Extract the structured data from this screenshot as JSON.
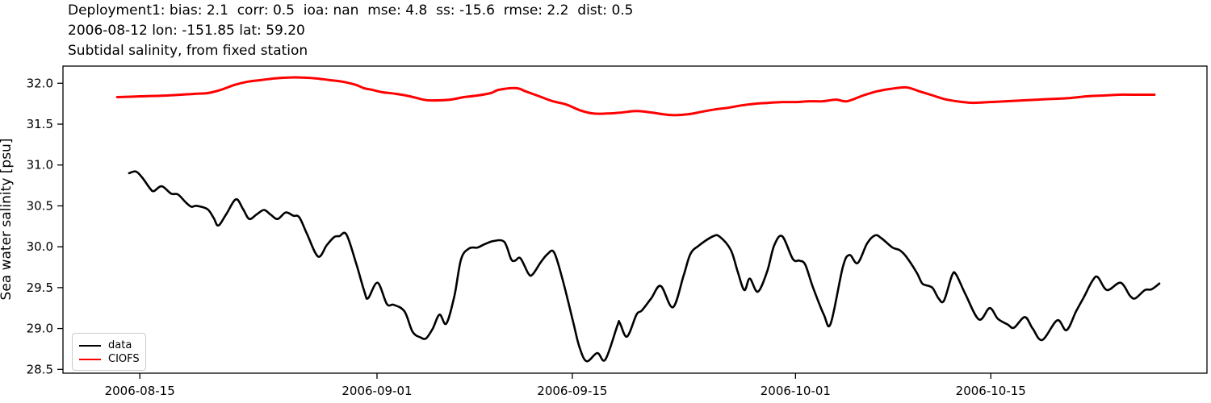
{
  "chart_data": {
    "type": "line",
    "title_lines": [
      "Deployment1: bias: 2.1  corr: 0.5  ioa: nan  mse: 4.8  ss: -15.6  rmse: 2.2  dist: 0.5",
      "2006-08-12 lon: -151.85 lat: 59.20",
      "Subtidal salinity, from fixed station"
    ],
    "xlabel": "",
    "ylabel": "Sea water salinity [psu]",
    "grid": false,
    "background": "#ffffff",
    "axis_color": "#000000",
    "ylim": [
      28.45,
      32.21
    ],
    "y_ticks": [
      {
        "value": 28.5,
        "label": "28.5"
      },
      {
        "value": 29.0,
        "label": "29.0"
      },
      {
        "value": 29.5,
        "label": "29.5"
      },
      {
        "value": 30.0,
        "label": "30.0"
      },
      {
        "value": 30.5,
        "label": "30.5"
      },
      {
        "value": 31.0,
        "label": "31.0"
      },
      {
        "value": 31.5,
        "label": "31.5"
      },
      {
        "value": 32.0,
        "label": "32.0"
      }
    ],
    "x_axis_note": "x values are days since 2006-08-15",
    "xlim_days": [
      -5.5,
      76.5
    ],
    "x_ticks": [
      {
        "day": 0,
        "label": "2006-08-15"
      },
      {
        "day": 17,
        "label": "2006-09-01"
      },
      {
        "day": 31,
        "label": "2006-09-15"
      },
      {
        "day": 47,
        "label": "2006-10-01"
      },
      {
        "day": 61,
        "label": "2006-10-15"
      }
    ],
    "legend": {
      "position": "lower left",
      "entries": [
        {
          "label": "data",
          "color": "#000000"
        },
        {
          "label": "CIOFS",
          "color": "#ff0000"
        }
      ]
    },
    "series": [
      {
        "name": "data",
        "color": "#000000",
        "line_width": 2.6,
        "points": [
          [
            -0.77,
            30.9
          ],
          [
            -0.27,
            30.92
          ],
          [
            0.2,
            30.84
          ],
          [
            0.7,
            30.72
          ],
          [
            0.99,
            30.68
          ],
          [
            1.57,
            30.74
          ],
          [
            2.24,
            30.65
          ],
          [
            2.73,
            30.64
          ],
          [
            3.31,
            30.54
          ],
          [
            3.69,
            30.49
          ],
          [
            4.08,
            30.5
          ],
          [
            4.85,
            30.46
          ],
          [
            5.3,
            30.35
          ],
          [
            5.63,
            30.26
          ],
          [
            6.2,
            30.4
          ],
          [
            6.89,
            30.58
          ],
          [
            7.4,
            30.46
          ],
          [
            7.85,
            30.34
          ],
          [
            8.4,
            30.4
          ],
          [
            8.91,
            30.45
          ],
          [
            9.4,
            30.39
          ],
          [
            9.88,
            30.34
          ],
          [
            10.46,
            30.42
          ],
          [
            11.0,
            30.38
          ],
          [
            11.43,
            30.36
          ],
          [
            12.0,
            30.15
          ],
          [
            12.78,
            29.88
          ],
          [
            13.4,
            30.02
          ],
          [
            13.94,
            30.12
          ],
          [
            14.3,
            30.13
          ],
          [
            14.81,
            30.15
          ],
          [
            15.5,
            29.8
          ],
          [
            16.1,
            29.45
          ],
          [
            16.36,
            29.37
          ],
          [
            17.04,
            29.56
          ],
          [
            17.71,
            29.3
          ],
          [
            18.2,
            29.29
          ],
          [
            18.97,
            29.21
          ],
          [
            19.55,
            28.96
          ],
          [
            20.13,
            28.89
          ],
          [
            20.52,
            28.88
          ],
          [
            21.0,
            29.0
          ],
          [
            21.48,
            29.17
          ],
          [
            21.97,
            29.06
          ],
          [
            22.55,
            29.4
          ],
          [
            23.03,
            29.85
          ],
          [
            23.61,
            29.98
          ],
          [
            24.19,
            29.99
          ],
          [
            24.7,
            30.03
          ],
          [
            25.35,
            30.07
          ],
          [
            26.12,
            30.06
          ],
          [
            26.61,
            29.85
          ],
          [
            26.9,
            29.83
          ],
          [
            27.28,
            29.86
          ],
          [
            27.86,
            29.67
          ],
          [
            28.15,
            29.66
          ],
          [
            28.7,
            29.8
          ],
          [
            29.22,
            29.91
          ],
          [
            29.7,
            29.93
          ],
          [
            30.3,
            29.6
          ],
          [
            31.05,
            29.09
          ],
          [
            31.5,
            28.78
          ],
          [
            32.02,
            28.6
          ],
          [
            32.79,
            28.7
          ],
          [
            33.37,
            28.62
          ],
          [
            34.24,
            29.04
          ],
          [
            34.4,
            29.07
          ],
          [
            34.92,
            28.9
          ],
          [
            35.6,
            29.17
          ],
          [
            35.98,
            29.22
          ],
          [
            36.66,
            29.37
          ],
          [
            37.34,
            29.52
          ],
          [
            38.21,
            29.26
          ],
          [
            38.98,
            29.65
          ],
          [
            39.46,
            29.91
          ],
          [
            40.04,
            30.01
          ],
          [
            41.11,
            30.13
          ],
          [
            41.59,
            30.12
          ],
          [
            42.36,
            29.96
          ],
          [
            42.85,
            29.7
          ],
          [
            43.33,
            29.47
          ],
          [
            43.72,
            29.61
          ],
          [
            44.3,
            29.45
          ],
          [
            44.97,
            29.7
          ],
          [
            45.46,
            30.01
          ],
          [
            46.04,
            30.13
          ],
          [
            46.81,
            29.85
          ],
          [
            47.29,
            29.83
          ],
          [
            47.7,
            29.78
          ],
          [
            48.26,
            29.5
          ],
          [
            49.03,
            29.17
          ],
          [
            49.52,
            29.06
          ],
          [
            50.39,
            29.75
          ],
          [
            50.87,
            29.9
          ],
          [
            51.45,
            29.8
          ],
          [
            52.13,
            30.04
          ],
          [
            52.71,
            30.14
          ],
          [
            53.19,
            30.1
          ],
          [
            53.96,
            29.99
          ],
          [
            54.45,
            29.96
          ],
          [
            54.93,
            29.88
          ],
          [
            55.7,
            29.68
          ],
          [
            56.09,
            29.55
          ],
          [
            56.57,
            29.52
          ],
          [
            56.86,
            29.49
          ],
          [
            57.25,
            29.37
          ],
          [
            57.64,
            29.34
          ],
          [
            58.22,
            29.65
          ],
          [
            58.51,
            29.66
          ],
          [
            59.18,
            29.42
          ],
          [
            60.15,
            29.11
          ],
          [
            60.92,
            29.25
          ],
          [
            61.5,
            29.12
          ],
          [
            62.2,
            29.05
          ],
          [
            62.66,
            29.01
          ],
          [
            63.44,
            29.14
          ],
          [
            64.0,
            29.0
          ],
          [
            64.69,
            28.86
          ],
          [
            65.76,
            29.1
          ],
          [
            66.43,
            28.98
          ],
          [
            67.11,
            29.21
          ],
          [
            67.69,
            29.39
          ],
          [
            68.27,
            29.58
          ],
          [
            68.66,
            29.63
          ],
          [
            69.33,
            29.47
          ],
          [
            70.3,
            29.56
          ],
          [
            70.98,
            29.4
          ],
          [
            71.36,
            29.37
          ],
          [
            72.04,
            29.47
          ],
          [
            72.52,
            29.48
          ],
          [
            73.08,
            29.55
          ]
        ]
      },
      {
        "name": "CIOFS",
        "color": "#ff0000",
        "line_width": 3,
        "points": [
          [
            -1.62,
            31.83
          ],
          [
            0.02,
            31.84
          ],
          [
            1.95,
            31.85
          ],
          [
            3.89,
            31.87
          ],
          [
            4.85,
            31.88
          ],
          [
            5.82,
            31.92
          ],
          [
            6.79,
            31.98
          ],
          [
            7.75,
            32.02
          ],
          [
            8.72,
            32.04
          ],
          [
            9.69,
            32.06
          ],
          [
            10.65,
            32.07
          ],
          [
            11.62,
            32.07
          ],
          [
            12.59,
            32.06
          ],
          [
            13.55,
            32.04
          ],
          [
            14.52,
            32.02
          ],
          [
            15.49,
            31.98
          ],
          [
            16.07,
            31.94
          ],
          [
            16.65,
            31.92
          ],
          [
            17.42,
            31.89
          ],
          [
            18.39,
            31.87
          ],
          [
            19.36,
            31.84
          ],
          [
            20.32,
            31.8
          ],
          [
            20.9,
            31.79
          ],
          [
            22.26,
            31.8
          ],
          [
            23.22,
            31.83
          ],
          [
            24.19,
            31.85
          ],
          [
            25.16,
            31.88
          ],
          [
            25.74,
            31.92
          ],
          [
            26.99,
            31.94
          ],
          [
            27.67,
            31.9
          ],
          [
            28.64,
            31.84
          ],
          [
            29.6,
            31.78
          ],
          [
            30.57,
            31.74
          ],
          [
            31.54,
            31.67
          ],
          [
            32.5,
            31.63
          ],
          [
            33.47,
            31.63
          ],
          [
            34.44,
            31.64
          ],
          [
            35.6,
            31.66
          ],
          [
            36.76,
            31.64
          ],
          [
            37.53,
            31.62
          ],
          [
            38.3,
            31.61
          ],
          [
            39.27,
            31.62
          ],
          [
            40.24,
            31.65
          ],
          [
            41.2,
            31.68
          ],
          [
            42.17,
            31.7
          ],
          [
            43.14,
            31.73
          ],
          [
            44.1,
            31.75
          ],
          [
            45.07,
            31.76
          ],
          [
            46.04,
            31.77
          ],
          [
            47.0,
            31.77
          ],
          [
            47.97,
            31.78
          ],
          [
            48.94,
            31.78
          ],
          [
            49.9,
            31.8
          ],
          [
            50.68,
            31.78
          ],
          [
            51.84,
            31.85
          ],
          [
            52.8,
            31.9
          ],
          [
            53.77,
            31.93
          ],
          [
            54.93,
            31.95
          ],
          [
            55.9,
            31.9
          ],
          [
            56.86,
            31.85
          ],
          [
            57.83,
            31.8
          ],
          [
            58.99,
            31.77
          ],
          [
            59.76,
            31.76
          ],
          [
            60.92,
            31.77
          ],
          [
            62.08,
            31.78
          ],
          [
            63.24,
            31.79
          ],
          [
            64.4,
            31.8
          ],
          [
            65.56,
            31.81
          ],
          [
            66.72,
            31.82
          ],
          [
            67.88,
            31.84
          ],
          [
            69.04,
            31.85
          ],
          [
            70.2,
            31.86
          ],
          [
            71.36,
            31.86
          ],
          [
            72.73,
            31.86
          ]
        ]
      }
    ]
  }
}
